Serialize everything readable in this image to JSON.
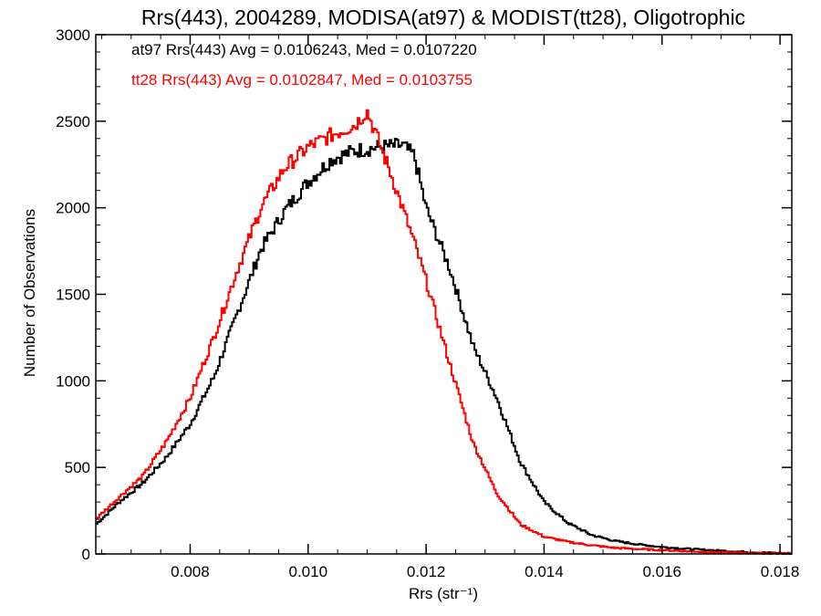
{
  "chart_data": {
    "type": "line",
    "title": "Rrs(443), 2004289, MODISA(at97) & MODIST(tt28), Oligotrophic",
    "xlabel": "Rrs (str⁻¹)",
    "ylabel": "Number of Observations",
    "xlim": [
      0.0064,
      0.0182
    ],
    "ylim": [
      0,
      3000
    ],
    "x_ticks": [
      0.008,
      0.01,
      0.012,
      0.014,
      0.016,
      0.018
    ],
    "x_tick_labels": [
      "0.008",
      "0.010",
      "0.012",
      "0.014",
      "0.016",
      "0.018"
    ],
    "y_ticks": [
      0,
      500,
      1000,
      1500,
      2000,
      2500,
      3000
    ],
    "y_tick_labels": [
      "0",
      "500",
      "1000",
      "1500",
      "2000",
      "2500",
      "3000"
    ],
    "grid": false,
    "step": true,
    "annotations": [
      {
        "text": "at97 Rrs(443) Avg = 0.0106243, Med = 0.0107220",
        "color": "#000000"
      },
      {
        "text": "tt28 Rrs(443) Avg = 0.0102847, Med = 0.0103755",
        "color": "#ff0000"
      }
    ],
    "series": [
      {
        "color": "#000000",
        "points": [
          [
            0.0064,
            170
          ],
          [
            0.0068,
            300
          ],
          [
            0.0072,
            410
          ],
          [
            0.0076,
            560
          ],
          [
            0.008,
            750
          ],
          [
            0.0084,
            1020
          ],
          [
            0.0088,
            1390
          ],
          [
            0.0092,
            1760
          ],
          [
            0.0096,
            1980
          ],
          [
            0.01,
            2150
          ],
          [
            0.0104,
            2280
          ],
          [
            0.0108,
            2330
          ],
          [
            0.0112,
            2350
          ],
          [
            0.0116,
            2360
          ],
          [
            0.0118,
            2300
          ],
          [
            0.012,
            2000
          ],
          [
            0.0124,
            1650
          ],
          [
            0.0128,
            1200
          ],
          [
            0.0132,
            900
          ],
          [
            0.0136,
            530
          ],
          [
            0.014,
            300
          ],
          [
            0.0144,
            180
          ],
          [
            0.0148,
            110
          ],
          [
            0.0152,
            75
          ],
          [
            0.0156,
            55
          ],
          [
            0.016,
            40
          ],
          [
            0.0164,
            30
          ],
          [
            0.0168,
            22
          ],
          [
            0.0172,
            15
          ],
          [
            0.0176,
            9
          ],
          [
            0.018,
            5
          ],
          [
            0.0182,
            3
          ]
        ]
      },
      {
        "color": "#ff0000",
        "points": [
          [
            0.0064,
            200
          ],
          [
            0.0068,
            330
          ],
          [
            0.0072,
            450
          ],
          [
            0.0076,
            650
          ],
          [
            0.008,
            900
          ],
          [
            0.0084,
            1250
          ],
          [
            0.0088,
            1640
          ],
          [
            0.0092,
            2000
          ],
          [
            0.0096,
            2230
          ],
          [
            0.01,
            2350
          ],
          [
            0.0104,
            2420
          ],
          [
            0.0108,
            2480
          ],
          [
            0.011,
            2560
          ],
          [
            0.0112,
            2380
          ],
          [
            0.0114,
            2200
          ],
          [
            0.0116,
            2000
          ],
          [
            0.0118,
            1800
          ],
          [
            0.012,
            1580
          ],
          [
            0.0124,
            1100
          ],
          [
            0.0128,
            640
          ],
          [
            0.0132,
            350
          ],
          [
            0.0136,
            170
          ],
          [
            0.014,
            100
          ],
          [
            0.0144,
            70
          ],
          [
            0.0148,
            50
          ],
          [
            0.0152,
            35
          ],
          [
            0.0156,
            28
          ],
          [
            0.016,
            22
          ],
          [
            0.0164,
            16
          ],
          [
            0.0168,
            11
          ],
          [
            0.0172,
            7
          ],
          [
            0.0176,
            4
          ],
          [
            0.018,
            2
          ],
          [
            0.0182,
            1
          ]
        ]
      }
    ]
  }
}
